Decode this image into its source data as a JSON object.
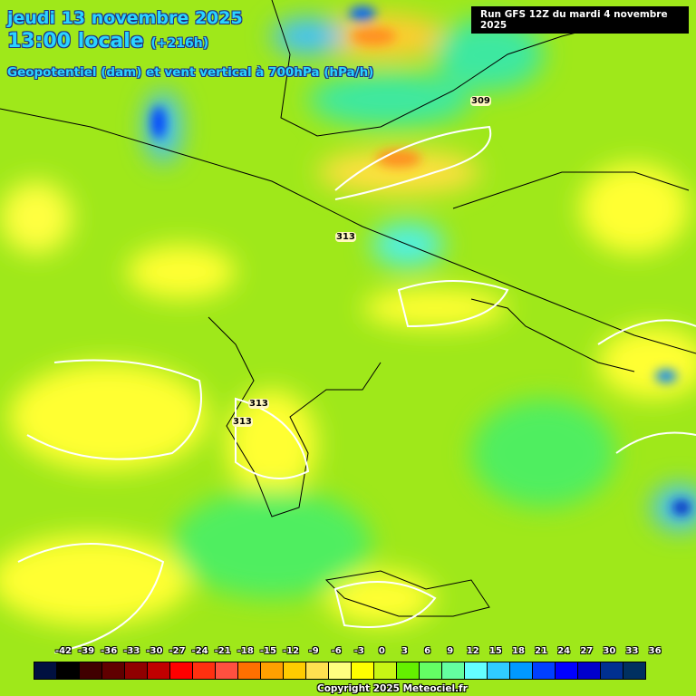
{
  "header": {
    "date": "jeudi 13 novembre 2025",
    "time": "13:00 locale",
    "lead": "(+216h)",
    "parameter": "Geopotentiel (dam) et vent vertical à 700hPa (hPa/h)"
  },
  "run": "Run GFS 12Z du mardi 4 novembre 2025",
  "copyright": "Copyright 2025 Meteociel.fr",
  "contour_labels": [
    "309",
    "313",
    "313",
    "313"
  ],
  "legend": {
    "ticks": [
      "-42",
      "-39",
      "-36",
      "-33",
      "-30",
      "-27",
      "-24",
      "-21",
      "-18",
      "-15",
      "-12",
      "-9",
      "-6",
      "-3",
      "0",
      "3",
      "6",
      "9",
      "12",
      "15",
      "18",
      "21",
      "24",
      "27",
      "30",
      "33",
      "36"
    ],
    "colors": [
      "#001040",
      "#000000",
      "#400000",
      "#600000",
      "#900000",
      "#c00000",
      "#ff0000",
      "#ff3010",
      "#ff5040",
      "#ff7000",
      "#ffa000",
      "#ffcc00",
      "#ffe050",
      "#ffff80",
      "#ffff00",
      "#c8f514",
      "#64f000",
      "#64ff64",
      "#64ffa0",
      "#64ffff",
      "#30ccff",
      "#0099ff",
      "#0040ff",
      "#0000ff",
      "#0000cc",
      "#003090",
      "#003060"
    ]
  }
}
